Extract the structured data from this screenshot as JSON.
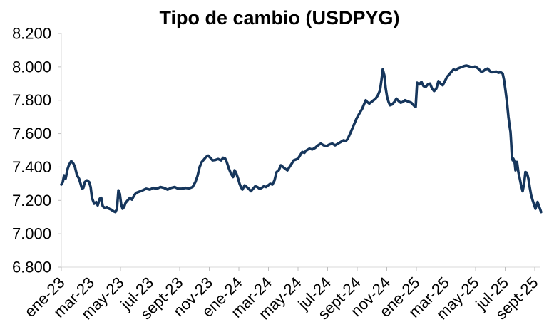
{
  "chart_data": {
    "type": "line",
    "title": "Tipo de cambio (USDPYG)",
    "xlabel": "",
    "ylabel": "",
    "grid": false,
    "legend": "none",
    "ylim": [
      6800,
      8200
    ],
    "xlim_months": [
      0,
      32.5
    ],
    "x_unit": "months since ene-23 (points are [month_offset, PYG per USD])",
    "colors": {
      "line": "#16365c",
      "axis": "#d9d9d9",
      "tick": "#bfbfbf",
      "text": "#000000",
      "background": "#ffffff"
    },
    "y_ticks": [
      {
        "value": 6800,
        "label": "6.800"
      },
      {
        "value": 7000,
        "label": "7.000"
      },
      {
        "value": 7200,
        "label": "7.200"
      },
      {
        "value": 7400,
        "label": "7.400"
      },
      {
        "value": 7600,
        "label": "7.600"
      },
      {
        "value": 7800,
        "label": "7.800"
      },
      {
        "value": 8000,
        "label": "8.000"
      },
      {
        "value": 8200,
        "label": "8.200"
      }
    ],
    "x_ticks": [
      {
        "month": 0,
        "label": "ene-23"
      },
      {
        "month": 2,
        "label": "mar-23"
      },
      {
        "month": 4,
        "label": "may-23"
      },
      {
        "month": 6,
        "label": "jul-23"
      },
      {
        "month": 8,
        "label": "sept-23"
      },
      {
        "month": 10,
        "label": "nov-23"
      },
      {
        "month": 12,
        "label": "ene-24"
      },
      {
        "month": 14,
        "label": "mar-24"
      },
      {
        "month": 16,
        "label": "may-24"
      },
      {
        "month": 18,
        "label": "jul-24"
      },
      {
        "month": 20,
        "label": "sept-24"
      },
      {
        "month": 22,
        "label": "nov-24"
      },
      {
        "month": 24,
        "label": "ene-25"
      },
      {
        "month": 26,
        "label": "mar-25"
      },
      {
        "month": 28,
        "label": "may-25"
      },
      {
        "month": 30,
        "label": "jul-25"
      },
      {
        "month": 32,
        "label": "sept-25"
      }
    ],
    "series": [
      {
        "name": "USDPYG",
        "color": "#16365c",
        "points": [
          [
            0,
            7295
          ],
          [
            0.1,
            7310
          ],
          [
            0.19,
            7350
          ],
          [
            0.29,
            7330
          ],
          [
            0.43,
            7390
          ],
          [
            0.53,
            7415
          ],
          [
            0.67,
            7435
          ],
          [
            0.82,
            7420
          ],
          [
            0.92,
            7400
          ],
          [
            1.06,
            7350
          ],
          [
            1.2,
            7330
          ],
          [
            1.3,
            7300
          ],
          [
            1.4,
            7270
          ],
          [
            1.49,
            7275
          ],
          [
            1.59,
            7310
          ],
          [
            1.73,
            7320
          ],
          [
            1.88,
            7310
          ],
          [
            1.98,
            7280
          ],
          [
            2.07,
            7215
          ],
          [
            2.22,
            7180
          ],
          [
            2.36,
            7190
          ],
          [
            2.46,
            7170
          ],
          [
            2.6,
            7210
          ],
          [
            2.7,
            7215
          ],
          [
            2.8,
            7165
          ],
          [
            2.94,
            7155
          ],
          [
            3.08,
            7160
          ],
          [
            3.23,
            7150
          ],
          [
            3.37,
            7145
          ],
          [
            3.52,
            7135
          ],
          [
            3.66,
            7130
          ],
          [
            3.76,
            7150
          ],
          [
            3.86,
            7260
          ],
          [
            3.95,
            7240
          ],
          [
            4.05,
            7175
          ],
          [
            4.14,
            7150
          ],
          [
            4.24,
            7160
          ],
          [
            4.34,
            7185
          ],
          [
            4.48,
            7200
          ],
          [
            4.63,
            7215
          ],
          [
            4.77,
            7205
          ],
          [
            4.92,
            7230
          ],
          [
            5.06,
            7245
          ],
          [
            5.2,
            7250
          ],
          [
            5.35,
            7255
          ],
          [
            5.49,
            7260
          ],
          [
            5.73,
            7270
          ],
          [
            5.98,
            7265
          ],
          [
            6.22,
            7275
          ],
          [
            6.46,
            7270
          ],
          [
            6.7,
            7280
          ],
          [
            6.94,
            7275
          ],
          [
            7.18,
            7265
          ],
          [
            7.42,
            7275
          ],
          [
            7.66,
            7280
          ],
          [
            7.9,
            7270
          ],
          [
            8.14,
            7270
          ],
          [
            8.39,
            7275
          ],
          [
            8.63,
            7272
          ],
          [
            8.87,
            7280
          ],
          [
            9.06,
            7310
          ],
          [
            9.2,
            7345
          ],
          [
            9.35,
            7400
          ],
          [
            9.49,
            7430
          ],
          [
            9.64,
            7445
          ],
          [
            9.78,
            7460
          ],
          [
            9.93,
            7468
          ],
          [
            10.07,
            7455
          ],
          [
            10.22,
            7440
          ],
          [
            10.41,
            7442
          ],
          [
            10.6,
            7448
          ],
          [
            10.8,
            7440
          ],
          [
            10.94,
            7455
          ],
          [
            11.08,
            7450
          ],
          [
            11.18,
            7430
          ],
          [
            11.33,
            7390
          ],
          [
            11.47,
            7360
          ],
          [
            11.61,
            7340
          ],
          [
            11.71,
            7380
          ],
          [
            11.81,
            7365
          ],
          [
            11.95,
            7330
          ],
          [
            12.05,
            7300
          ],
          [
            12.14,
            7280
          ],
          [
            12.24,
            7265
          ],
          [
            12.39,
            7290
          ],
          [
            12.53,
            7280
          ],
          [
            12.67,
            7270
          ],
          [
            12.82,
            7255
          ],
          [
            12.96,
            7270
          ],
          [
            13.11,
            7285
          ],
          [
            13.25,
            7280
          ],
          [
            13.4,
            7270
          ],
          [
            13.54,
            7275
          ],
          [
            13.69,
            7285
          ],
          [
            13.83,
            7280
          ],
          [
            13.98,
            7290
          ],
          [
            14.12,
            7300
          ],
          [
            14.27,
            7295
          ],
          [
            14.41,
            7320
          ],
          [
            14.55,
            7370
          ],
          [
            14.7,
            7380
          ],
          [
            14.84,
            7410
          ],
          [
            14.99,
            7400
          ],
          [
            15.13,
            7390
          ],
          [
            15.28,
            7380
          ],
          [
            15.42,
            7400
          ],
          [
            15.57,
            7420
          ],
          [
            15.71,
            7440
          ],
          [
            15.86,
            7445
          ],
          [
            16,
            7450
          ],
          [
            16.14,
            7470
          ],
          [
            16.29,
            7490
          ],
          [
            16.43,
            7485
          ],
          [
            16.58,
            7500
          ],
          [
            16.77,
            7510
          ],
          [
            16.96,
            7505
          ],
          [
            17.16,
            7515
          ],
          [
            17.35,
            7530
          ],
          [
            17.54,
            7540
          ],
          [
            17.73,
            7530
          ],
          [
            17.93,
            7525
          ],
          [
            18.12,
            7535
          ],
          [
            18.31,
            7540
          ],
          [
            18.51,
            7530
          ],
          [
            18.7,
            7540
          ],
          [
            18.89,
            7550
          ],
          [
            19.08,
            7560
          ],
          [
            19.23,
            7555
          ],
          [
            19.37,
            7570
          ],
          [
            19.57,
            7610
          ],
          [
            19.76,
            7650
          ],
          [
            19.95,
            7690
          ],
          [
            20.14,
            7720
          ],
          [
            20.34,
            7750
          ],
          [
            20.48,
            7780
          ],
          [
            20.58,
            7800
          ],
          [
            20.67,
            7790
          ],
          [
            20.82,
            7780
          ],
          [
            20.96,
            7790
          ],
          [
            21.11,
            7800
          ],
          [
            21.25,
            7810
          ],
          [
            21.4,
            7830
          ],
          [
            21.54,
            7860
          ],
          [
            21.64,
            7920
          ],
          [
            21.73,
            7985
          ],
          [
            21.83,
            7950
          ],
          [
            21.93,
            7870
          ],
          [
            22.02,
            7820
          ],
          [
            22.12,
            7790
          ],
          [
            22.22,
            7770
          ],
          [
            22.36,
            7775
          ],
          [
            22.51,
            7790
          ],
          [
            22.65,
            7810
          ],
          [
            22.8,
            7795
          ],
          [
            22.94,
            7785
          ],
          [
            23.08,
            7790
          ],
          [
            23.23,
            7800
          ],
          [
            23.37,
            7795
          ],
          [
            23.52,
            7790
          ],
          [
            23.66,
            7785
          ],
          [
            23.81,
            7770
          ],
          [
            23.95,
            7760
          ],
          [
            24.05,
            7905
          ],
          [
            24.19,
            7895
          ],
          [
            24.34,
            7910
          ],
          [
            24.48,
            7885
          ],
          [
            24.63,
            7880
          ],
          [
            24.77,
            7895
          ],
          [
            24.92,
            7900
          ],
          [
            25.06,
            7870
          ],
          [
            25.2,
            7855
          ],
          [
            25.35,
            7870
          ],
          [
            25.49,
            7915
          ],
          [
            25.64,
            7900
          ],
          [
            25.78,
            7890
          ],
          [
            25.93,
            7915
          ],
          [
            26.07,
            7940
          ],
          [
            26.22,
            7955
          ],
          [
            26.36,
            7970
          ],
          [
            26.51,
            7985
          ],
          [
            26.65,
            7980
          ],
          [
            26.8,
            7990
          ],
          [
            26.94,
            7995
          ],
          [
            27.08,
            8000
          ],
          [
            27.23,
            8005
          ],
          [
            27.37,
            8008
          ],
          [
            27.52,
            8005
          ],
          [
            27.66,
            8000
          ],
          [
            27.81,
            7998
          ],
          [
            27.95,
            8002
          ],
          [
            28.1,
            7995
          ],
          [
            28.24,
            7985
          ],
          [
            28.39,
            7970
          ],
          [
            28.53,
            7975
          ],
          [
            28.67,
            7985
          ],
          [
            28.82,
            7990
          ],
          [
            28.96,
            7975
          ],
          [
            29.11,
            7968
          ],
          [
            29.25,
            7970
          ],
          [
            29.4,
            7972
          ],
          [
            29.54,
            7965
          ],
          [
            29.69,
            7968
          ],
          [
            29.83,
            7960
          ],
          [
            29.93,
            7920
          ],
          [
            30.02,
            7860
          ],
          [
            30.12,
            7790
          ],
          [
            30.22,
            7700
          ],
          [
            30.31,
            7640
          ],
          [
            30.36,
            7610
          ],
          [
            30.41,
            7540
          ],
          [
            30.46,
            7460
          ],
          [
            30.51,
            7440
          ],
          [
            30.55,
            7450
          ],
          [
            30.6,
            7440
          ],
          [
            30.65,
            7420
          ],
          [
            30.7,
            7380
          ],
          [
            30.75,
            7420
          ],
          [
            30.8,
            7430
          ],
          [
            30.89,
            7370
          ],
          [
            30.99,
            7330
          ],
          [
            31.08,
            7290
          ],
          [
            31.18,
            7255
          ],
          [
            31.28,
            7300
          ],
          [
            31.37,
            7370
          ],
          [
            31.47,
            7365
          ],
          [
            31.57,
            7330
          ],
          [
            31.66,
            7280
          ],
          [
            31.76,
            7230
          ],
          [
            31.86,
            7200
          ],
          [
            31.95,
            7175
          ],
          [
            32.05,
            7150
          ],
          [
            32.12,
            7170
          ],
          [
            32.19,
            7190
          ],
          [
            32.29,
            7165
          ],
          [
            32.39,
            7140
          ],
          [
            32.43,
            7130
          ]
        ]
      }
    ]
  }
}
